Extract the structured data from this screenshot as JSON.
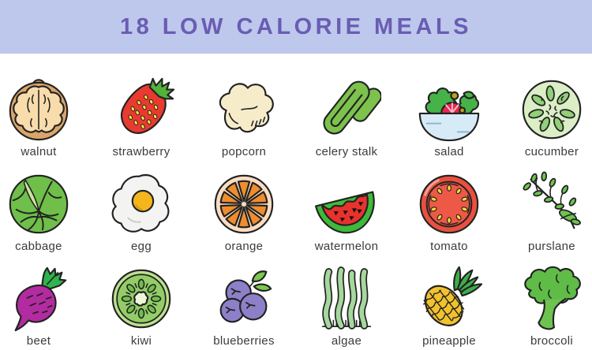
{
  "header": {
    "title": "18 LOW CALORIE MEALS",
    "background": "#bdc8ec",
    "text_color": "#6a5cb3"
  },
  "colors": {
    "page_background": "#ffffff",
    "label_color": "#3b3b3b",
    "outline": "#222222"
  },
  "items": [
    {
      "label": "walnut",
      "icon": "walnut"
    },
    {
      "label": "strawberry",
      "icon": "strawberry"
    },
    {
      "label": "popcorn",
      "icon": "popcorn"
    },
    {
      "label": "celery stalk",
      "icon": "celery"
    },
    {
      "label": "salad",
      "icon": "salad"
    },
    {
      "label": "cucumber",
      "icon": "cucumber"
    },
    {
      "label": "cabbage",
      "icon": "cabbage"
    },
    {
      "label": "egg",
      "icon": "egg"
    },
    {
      "label": "orange",
      "icon": "orange"
    },
    {
      "label": "watermelon",
      "icon": "watermelon"
    },
    {
      "label": "tomato",
      "icon": "tomato"
    },
    {
      "label": "purslane",
      "icon": "purslane"
    },
    {
      "label": "beet",
      "icon": "beet"
    },
    {
      "label": "kiwi",
      "icon": "kiwi"
    },
    {
      "label": "blueberries",
      "icon": "blueberries"
    },
    {
      "label": "algae",
      "icon": "algae"
    },
    {
      "label": "pineapple",
      "icon": "pineapple"
    },
    {
      "label": "broccoli",
      "icon": "broccoli"
    }
  ]
}
